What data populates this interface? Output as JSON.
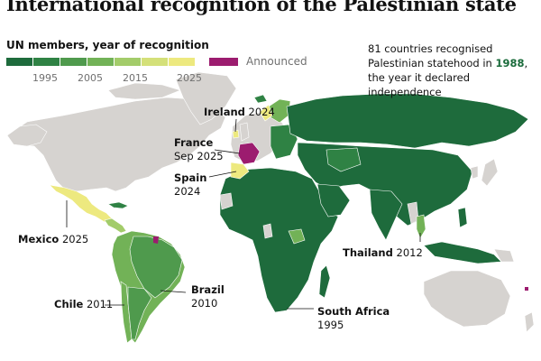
{
  "title": "International recognition of the Palestinian state",
  "legend": {
    "title": "UN members, year of recognition",
    "swatches": [
      "#1e6b3c",
      "#2f8244",
      "#4f9a4d",
      "#72b257",
      "#a3cc6a",
      "#d4e079",
      "#ede97f"
    ],
    "ticks": [
      "1995",
      "2005",
      "2015",
      "2025"
    ],
    "announced_label": "Announced",
    "announced_color": "#9c1c6f"
  },
  "note": {
    "before": "81 countries recognised Palestinian statehood in ",
    "year": "1988",
    "after": ", the year it declared independence"
  },
  "colors": {
    "not_recognised": "#d6d3d0",
    "ocean": "#ffffff",
    "border": "#ffffff",
    "leader": "#121212"
  },
  "annotations": {
    "ireland": {
      "name": "Ireland",
      "year": "2024"
    },
    "france": {
      "name": "France",
      "year": "Sep 2025"
    },
    "spain": {
      "name": "Spain",
      "year": "2024"
    },
    "mexico": {
      "name": "Mexico",
      "year": "2025"
    },
    "chile": {
      "name": "Chile",
      "year": "2011"
    },
    "brazil": {
      "name": "Brazil",
      "year": "2010"
    },
    "thailand": {
      "name": "Thailand",
      "year": "2012"
    },
    "south_africa": {
      "name": "South Africa",
      "year": "1995"
    }
  }
}
